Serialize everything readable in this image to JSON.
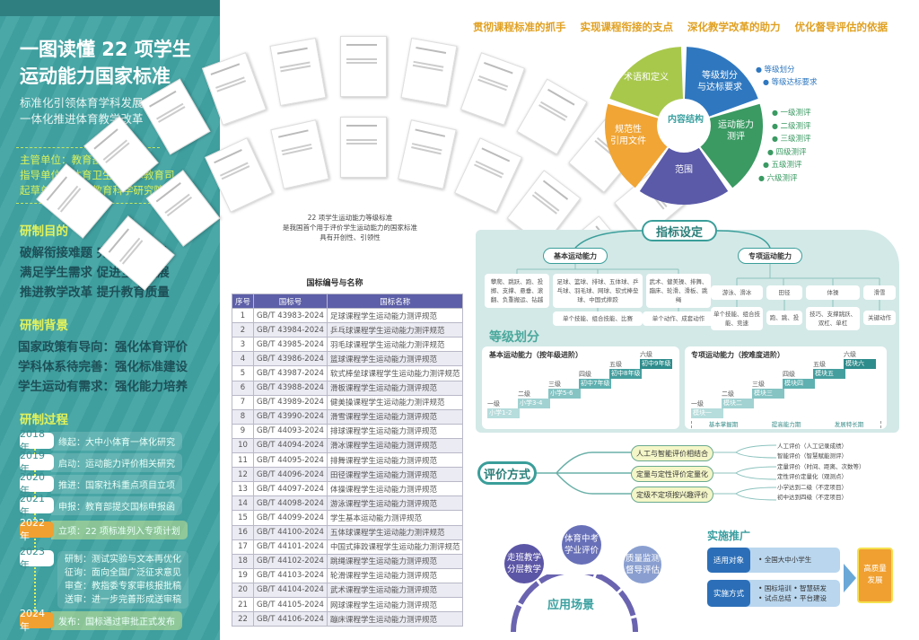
{
  "header": {
    "title_line1": "一图读懂 22 项学生",
    "title_line2": "运动能力国家标准",
    "subtitle1": "标准化引领体育学科发展",
    "subtitle2": "一体化推进体育教学改革"
  },
  "units": [
    "主管单位：教育部",
    "指导单位：体育卫生与艺术教育司",
    "起草单位：中国教育科学研究院 等"
  ],
  "purpose": {
    "title": "研制目的",
    "items": [
      "破解衔接难题  完善学科理论",
      "满足学生需求  促进全面发展",
      "推进教学改革  提升教育质量"
    ]
  },
  "background": {
    "title": "研制背景",
    "items": [
      "国家政策有导向：强化体育评价",
      "学科体系待完善：强化标准建设",
      "学生运动有需求：强化能力培养"
    ]
  },
  "process": {
    "title": "研制过程",
    "items": [
      {
        "year": "2018 年",
        "text": "缘起：大中小体育一体化研究",
        "highlight": false
      },
      {
        "year": "2019 年",
        "text": "启动：运动能力评价相关研究",
        "highlight": false
      },
      {
        "year": "2020 年",
        "text": "推进：国家社科重点项目立项",
        "highlight": false
      },
      {
        "year": "2021 年",
        "text": "申报：教育部提交国标申报函",
        "highlight": false
      },
      {
        "year": "2022 年",
        "text": "立项：22 项标准列入专项计划",
        "highlight": true
      }
    ],
    "y2023": {
      "year": "2023 年",
      "lines": [
        "研制：测试实验与文本再优化",
        "征询：面向全国广泛征求意见",
        "审查：教指委专家审核报批稿",
        "送审：进一步完善形成送审稿"
      ]
    },
    "final": {
      "year": "2024 年",
      "text": "发布：国标通过审批正式发布"
    }
  },
  "fan_caption": [
    "22 项学生运动能力等级标准",
    "是我国首个用于评价学生运动能力的国家标准",
    "具有开创性、引领性"
  ],
  "table": {
    "title": "国标编号与名称",
    "headers": [
      "序号",
      "国标号",
      "国标名称"
    ],
    "rows": [
      [
        "1",
        "GB/T 43983-2024",
        "足球课程学生运动能力测评规范"
      ],
      [
        "2",
        "GB/T 43984-2024",
        "乒乓球课程学生运动能力测评规范"
      ],
      [
        "3",
        "GB/T 43985-2024",
        "羽毛球课程学生运动能力测评规范"
      ],
      [
        "4",
        "GB/T 43986-2024",
        "篮球课程学生运动能力测评规范"
      ],
      [
        "5",
        "GB/T 43987-2024",
        "软式棒垒球课程学生运动能力测评规范"
      ],
      [
        "6",
        "GB/T 43988-2024",
        "滑板课程学生运动能力测评规范"
      ],
      [
        "7",
        "GB/T 43989-2024",
        "健美操课程学生运动能力测评规范"
      ],
      [
        "8",
        "GB/T 43990-2024",
        "滑雪课程学生运动能力测评规范"
      ],
      [
        "9",
        "GB/T 44093-2024",
        "排球课程学生运动能力测评规范"
      ],
      [
        "10",
        "GB/T 44094-2024",
        "滑冰课程学生运动能力测评规范"
      ],
      [
        "11",
        "GB/T 44095-2024",
        "排舞课程学生运动能力测评规范"
      ],
      [
        "12",
        "GB/T 44096-2024",
        "田径课程学生运动能力测评规范"
      ],
      [
        "13",
        "GB/T 44097-2024",
        "体操课程学生运动能力测评规范"
      ],
      [
        "14",
        "GB/T 44098-2024",
        "游泳课程学生运动能力测评规范"
      ],
      [
        "15",
        "GB/T 44099-2024",
        "学生基本运动能力测评规范"
      ],
      [
        "16",
        "GB/T 44100-2024",
        "五体球课程学生运动能力测评规范"
      ],
      [
        "17",
        "GB/T 44101-2024",
        "中国式摔跤课程学生运动能力测评规范"
      ],
      [
        "18",
        "GB/T 44102-2024",
        "跳绳课程学生运动能力测评规范"
      ],
      [
        "19",
        "GB/T 44103-2024",
        "轮滑课程学生运动能力测评规范"
      ],
      [
        "20",
        "GB/T 44104-2024",
        "武术课程学生运动能力测评规范"
      ],
      [
        "21",
        "GB/T 44105-2024",
        "网球课程学生运动能力测评规范"
      ],
      [
        "22",
        "GB/T 44106-2024",
        "蹦床课程学生运动能力测评规范"
      ]
    ]
  },
  "goals": [
    "贯彻课程标准的抓手",
    "实现课程衔接的支点",
    "深化教学改革的助力",
    "优化督导评估的依据"
  ],
  "structure": {
    "center": "内容结构",
    "segments": [
      {
        "num": "①",
        "label": "范围",
        "color": "#5b5aa8"
      },
      {
        "num": "②",
        "label": "规范性\n引用文件",
        "color": "#f0a535"
      },
      {
        "num": "③",
        "label": "术语和定义",
        "color": "#a8c84c"
      },
      {
        "num": "④",
        "label": "等级划分\n与达标要求",
        "color": "#2f78c0"
      },
      {
        "num": "⑤",
        "label": "运动能力\n测评",
        "color": "#3a9a62"
      }
    ],
    "grading_items": [
      "等级划分",
      "等级达标要求"
    ],
    "test_items": [
      "一级测评",
      "二级测评",
      "三级测评",
      "四级测评",
      "五级测评",
      "六级测评"
    ]
  },
  "indicators": {
    "title": "指标设定",
    "basic": {
      "label": "基本运动能力",
      "boxes": [
        "攀爬、跳跃、跑、投掷、支撑、悬垂、滚翻、负重搬运、钻越",
        "足球、篮球、排球、五体球、乒乓球、羽毛球、网球、软式棒垒球、中国式摔跤",
        "武术、健美操、排舞、蹦床、轮滑、滑板、跳绳"
      ],
      "sub": [
        "单个技能、组合技能、比赛",
        "单个动作、成套动作"
      ]
    },
    "special": {
      "label": "专项运动能力",
      "boxes": [
        "游泳、滑冰",
        "田径",
        "体操",
        "滑雪"
      ],
      "sub": [
        "单个技能、组合技能、竞速",
        "跑、跳、投",
        "技巧、支撑跳跃、双杠、单杠",
        "关键动作"
      ]
    }
  },
  "grading": {
    "title": "等级划分",
    "basic": {
      "title": "基本运动能力（按年级进阶）",
      "levels": [
        "一级",
        "二级",
        "三级",
        "四级",
        "五级",
        "六级"
      ],
      "steps": [
        "小学1-2",
        "小学3-4",
        "小学5-6",
        "初中7年级",
        "初中8年级",
        "初中9年级"
      ]
    },
    "special": {
      "title": "专项运动能力（按难度进阶）",
      "levels": [
        "一级",
        "二级",
        "三级",
        "四级",
        "五级",
        "六级"
      ],
      "steps": [
        "模块一",
        "模块二",
        "模块三",
        "模块四",
        "模块五",
        "模块六"
      ],
      "phases": [
        "基本掌握期",
        "提高能力期",
        "发展特长期"
      ]
    }
  },
  "evaluation": {
    "title": "评价方式",
    "branches": [
      {
        "label": "人工与智能评价相结合",
        "details": [
          "人工评价（人工记录成绩）",
          "智能评价（智慧賦能测评）"
        ]
      },
      {
        "label": "定量与定性评价定量化",
        "details": [
          "定量评价（时间、距离、次数等）",
          "定性评价定量化（观测点）"
        ]
      },
      {
        "label": "定级不定项按兴趣评价",
        "details": [
          "小学达到二级（不定项目）",
          "初中达到四级（不定项目）"
        ]
      }
    ]
  },
  "application": {
    "title": "应用场景",
    "items": [
      "走班教学\n分层教学",
      "体育中考\n学业评价",
      "质量监测\n督导评估"
    ]
  },
  "promotion": {
    "title": "实施推广",
    "rows": [
      {
        "label": "适用对象",
        "items": [
          "全国大中小学生"
        ]
      },
      {
        "label": "实施方式",
        "items": [
          "国标培训",
          "智慧研发",
          "试点总结",
          "平台建设"
        ]
      }
    ],
    "result": "高质量\n发展"
  },
  "colors": {
    "teal": "#3f9e9e",
    "purple": "#5d5fa8",
    "orange": "#f0a030",
    "accent_yellow": "#e3f25a"
  }
}
